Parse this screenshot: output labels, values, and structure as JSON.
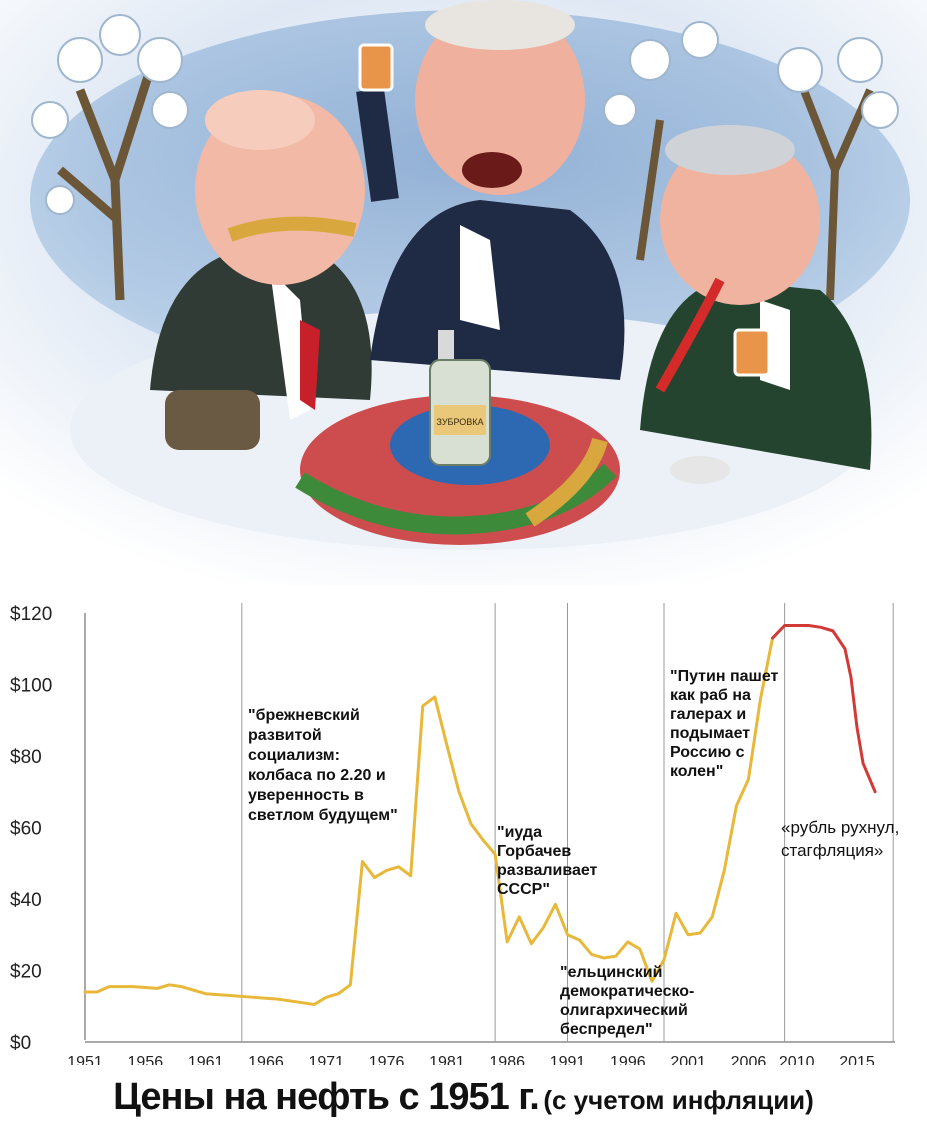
{
  "illustration": {
    "description_icon": "caricature-three-men-drinking-in-snow-icon",
    "bottle_label": "ЗУБРОВКА"
  },
  "chart_data": {
    "type": "line",
    "title": "Цены на нефть с 1951 г.",
    "subtitle": "(с учетом инфляции)",
    "xlabel": "",
    "ylabel": "",
    "xlim": [
      1951,
      2019
    ],
    "ylim": [
      0,
      120
    ],
    "x_ticks": [
      1951,
      1956,
      1961,
      1966,
      1971,
      1976,
      1981,
      1986,
      1991,
      1996,
      2001,
      2006,
      2010,
      2015
    ],
    "y_ticks": [
      0,
      20,
      40,
      60,
      80,
      100,
      120
    ],
    "y_tick_labels": [
      "$0",
      "$20",
      "$40",
      "$60",
      "$80",
      "$100",
      "$120"
    ],
    "grid": "vertical era lines only",
    "era_lines": [
      1964,
      1985,
      1991,
      1999,
      2009,
      2018
    ],
    "series": [
      {
        "color": "#e8b83a",
        "x": [
          1951,
          1952,
          1953,
          1955,
          1957,
          1958,
          1959,
          1960,
          1961,
          1963,
          1965,
          1967,
          1969,
          1970,
          1971,
          1972,
          1973,
          1974,
          1975,
          1976,
          1977,
          1978,
          1979,
          1980,
          1981,
          1982,
          1983,
          1984,
          1985,
          1986,
          1987,
          1988,
          1989,
          1990,
          1991,
          1992,
          1993,
          1994,
          1995,
          1996,
          1997,
          1998,
          1999,
          2000,
          2001,
          2002,
          2003,
          2004,
          2005,
          2006,
          2007,
          2008
        ],
        "values": [
          14,
          14,
          15.5,
          15.5,
          15,
          16,
          15.5,
          14.5,
          13.5,
          13,
          12.5,
          12,
          11,
          10.5,
          12.5,
          13.5,
          16,
          50.5,
          46,
          48,
          49,
          46.5,
          94,
          96.5,
          83,
          70,
          61,
          56.5,
          52.5,
          28,
          35,
          27.5,
          32,
          38.5,
          30,
          28.5,
          24.5,
          23.5,
          24,
          28,
          26,
          17,
          23,
          36,
          30,
          30.5,
          35,
          48,
          66,
          73.5,
          96,
          113
        ]
      },
      {
        "color": "#d23a36",
        "x": [
          2008,
          2009,
          2010,
          2011,
          2012,
          2013,
          2014,
          2014.5,
          2015,
          2015.5,
          2016,
          2016.5
        ],
        "values": [
          113,
          116.5,
          116.5,
          116.5,
          116,
          115,
          110,
          102,
          88,
          78,
          74,
          70
        ]
      }
    ],
    "annotations": [
      {
        "lines": [
          "\"брежневский",
          "развитой",
          "социализм:",
          "колбаса по 2.20 и",
          "уверенность в",
          "светлом будущем\""
        ],
        "style": "bold"
      },
      {
        "lines": [
          "\"иуда",
          "Горбачев",
          "разваливает",
          "СССР\""
        ],
        "style": "bold"
      },
      {
        "lines": [
          "\"ельцинский",
          "демократическо-",
          "олигархический",
          "беспредел\""
        ],
        "style": "bold"
      },
      {
        "lines": [
          "\"Путин пашет",
          "как раб на",
          "галерах и",
          "подымает",
          "Россию с",
          "колен\""
        ],
        "style": "bold"
      },
      {
        "lines": [
          "«рубль рухнул,",
          "стагфляция»"
        ],
        "style": "normal"
      }
    ]
  }
}
